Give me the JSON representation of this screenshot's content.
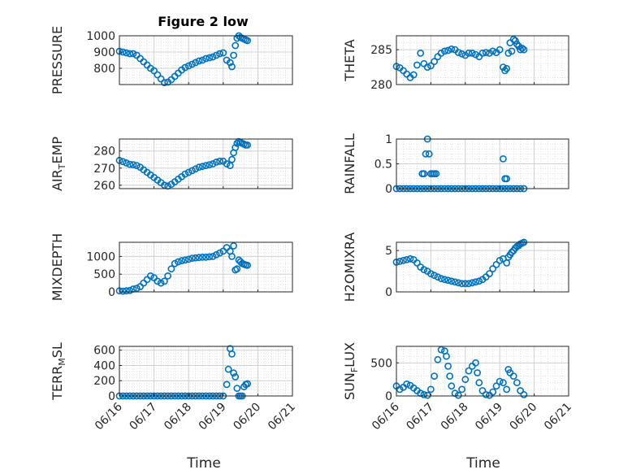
{
  "figure": {
    "title": "Figure 2 low",
    "xlabel": "Time",
    "x_ticks": [
      "06/16",
      "06/17",
      "06/18",
      "06/19",
      "06/20",
      "06/21"
    ],
    "marker_color": "#0072BD",
    "grid": true,
    "minor_grid": true
  },
  "chart_data": [
    {
      "type": "scatter",
      "marker": "circle",
      "ylabel": "PRESSURE",
      "xlim": [
        0,
        5
      ],
      "ylim": [
        700,
        1000
      ],
      "yticks": [
        800,
        900,
        1000
      ],
      "x": [
        0.0,
        0.1,
        0.2,
        0.3,
        0.4,
        0.5,
        0.6,
        0.7,
        0.8,
        0.9,
        1.0,
        1.1,
        1.2,
        1.3,
        1.4,
        1.5,
        1.6,
        1.7,
        1.8,
        1.9,
        2.0,
        2.1,
        2.2,
        2.3,
        2.4,
        2.5,
        2.6,
        2.7,
        2.8,
        2.9,
        3.0,
        3.1,
        3.2,
        3.25,
        3.3,
        3.35,
        3.4,
        3.45,
        3.5,
        3.55,
        3.6,
        3.65,
        3.7
      ],
      "y": [
        905,
        900,
        895,
        890,
        890,
        880,
        860,
        840,
        820,
        800,
        785,
        760,
        735,
        712,
        715,
        730,
        750,
        770,
        790,
        805,
        815,
        825,
        835,
        845,
        850,
        860,
        865,
        870,
        880,
        890,
        895,
        850,
        835,
        810,
        880,
        940,
        985,
        1000,
        990,
        985,
        980,
        975,
        970
      ]
    },
    {
      "type": "scatter",
      "marker": "circle",
      "ylabel": "THETA",
      "xlim": [
        0,
        5
      ],
      "ylim": [
        280,
        287
      ],
      "yticks": [
        280,
        285
      ],
      "x": [
        0.0,
        0.1,
        0.2,
        0.3,
        0.4,
        0.5,
        0.6,
        0.7,
        0.8,
        0.9,
        1.0,
        1.1,
        1.2,
        1.3,
        1.4,
        1.5,
        1.6,
        1.7,
        1.8,
        1.9,
        2.0,
        2.1,
        2.2,
        2.3,
        2.4,
        2.5,
        2.6,
        2.7,
        2.8,
        2.9,
        3.0,
        3.1,
        3.15,
        3.2,
        3.25,
        3.3,
        3.35,
        3.4,
        3.45,
        3.5,
        3.55,
        3.6,
        3.65,
        3.7
      ],
      "y": [
        282.6,
        282.4,
        282.0,
        281.5,
        281.0,
        281.4,
        282.8,
        284.5,
        283.0,
        282.5,
        282.7,
        283.3,
        284.0,
        284.5,
        284.8,
        284.9,
        285.1,
        285.0,
        284.6,
        284.4,
        284.2,
        284.5,
        284.5,
        284.3,
        284.0,
        284.5,
        284.6,
        284.5,
        284.8,
        284.6,
        285.0,
        282.5,
        282.0,
        282.3,
        284.5,
        286.0,
        284.8,
        286.5,
        286.3,
        285.8,
        285.5,
        285.0,
        285.2,
        285.0
      ]
    },
    {
      "type": "scatter",
      "marker": "circle",
      "ylabel": "AIR_TEMP",
      "xlim": [
        0,
        5
      ],
      "ylim": [
        258,
        287
      ],
      "yticks": [
        260,
        270,
        280
      ],
      "x": [
        0.0,
        0.1,
        0.2,
        0.3,
        0.4,
        0.5,
        0.6,
        0.7,
        0.8,
        0.9,
        1.0,
        1.1,
        1.2,
        1.3,
        1.4,
        1.5,
        1.6,
        1.7,
        1.8,
        1.9,
        2.0,
        2.1,
        2.2,
        2.3,
        2.4,
        2.5,
        2.6,
        2.7,
        2.8,
        2.9,
        3.0,
        3.1,
        3.2,
        3.25,
        3.3,
        3.35,
        3.4,
        3.45,
        3.5,
        3.55,
        3.6,
        3.65,
        3.7
      ],
      "y": [
        274.5,
        273.8,
        273.0,
        272.2,
        272.0,
        271.5,
        270.5,
        269.0,
        267.5,
        266.0,
        264.5,
        263.0,
        261.5,
        260.0,
        259.5,
        260.5,
        262.0,
        263.5,
        265.0,
        266.5,
        267.5,
        268.5,
        269.5,
        270.5,
        271.0,
        271.5,
        272.0,
        272.5,
        273.5,
        274.0,
        274.0,
        272.5,
        271.5,
        275.0,
        279.0,
        282.0,
        284.5,
        285.5,
        285.0,
        284.5,
        284.0,
        283.5,
        283.5
      ]
    },
    {
      "type": "scatter",
      "marker": "circle",
      "ylabel": "RAINFALL",
      "xlim": [
        0,
        5
      ],
      "ylim": [
        0,
        1
      ],
      "yticks": [
        0,
        0.5,
        1
      ],
      "x": [
        0.0,
        0.1,
        0.2,
        0.3,
        0.4,
        0.5,
        0.6,
        0.7,
        0.8,
        0.9,
        1.0,
        1.1,
        1.2,
        1.3,
        1.4,
        1.5,
        1.6,
        1.7,
        1.8,
        1.9,
        2.0,
        2.1,
        2.2,
        2.3,
        2.4,
        2.5,
        2.6,
        2.7,
        2.8,
        2.9,
        3.0,
        3.1,
        3.2,
        3.3,
        3.4,
        3.5,
        3.6,
        3.7,
        0.75,
        0.8,
        0.85,
        0.9,
        0.95,
        1.0,
        1.05,
        1.1,
        1.15,
        3.1,
        3.15,
        3.2
      ],
      "y": [
        0,
        0,
        0,
        0,
        0,
        0,
        0,
        0,
        0,
        0,
        0,
        0,
        0,
        0,
        0,
        0,
        0,
        0,
        0,
        0,
        0,
        0,
        0,
        0,
        0,
        0,
        0,
        0,
        0,
        0,
        0,
        0,
        0,
        0,
        0,
        0,
        0,
        0,
        0.3,
        0.3,
        0.7,
        1.0,
        0.7,
        0.3,
        0.3,
        0.3,
        0.3,
        0.6,
        0.2,
        0.2
      ]
    },
    {
      "type": "scatter",
      "marker": "circle",
      "ylabel": "MIXDEPTH",
      "xlim": [
        0,
        5
      ],
      "ylim": [
        0,
        1400
      ],
      "yticks": [
        0,
        500,
        1000
      ],
      "x": [
        0.0,
        0.1,
        0.2,
        0.3,
        0.4,
        0.5,
        0.6,
        0.7,
        0.8,
        0.9,
        1.0,
        1.1,
        1.2,
        1.3,
        1.4,
        1.5,
        1.6,
        1.7,
        1.8,
        1.9,
        2.0,
        2.1,
        2.2,
        2.3,
        2.4,
        2.5,
        2.6,
        2.7,
        2.8,
        2.9,
        3.0,
        3.1,
        3.2,
        3.25,
        3.3,
        3.35,
        3.4,
        3.45,
        3.5,
        3.55,
        3.6,
        3.65,
        3.7
      ],
      "y": [
        30,
        20,
        30,
        40,
        80,
        100,
        150,
        250,
        350,
        450,
        400,
        300,
        250,
        300,
        450,
        650,
        800,
        850,
        880,
        900,
        920,
        950,
        960,
        970,
        980,
        980,
        990,
        1000,
        1050,
        1100,
        1150,
        1250,
        1150,
        1000,
        1300,
        620,
        650,
        900,
        850,
        800,
        780,
        760,
        750
      ]
    },
    {
      "type": "scatter",
      "marker": "circle",
      "ylabel": "H2OMIXRA",
      "xlim": [
        0,
        5
      ],
      "ylim": [
        0,
        6
      ],
      "yticks": [
        0,
        5
      ],
      "x": [
        0.0,
        0.1,
        0.2,
        0.3,
        0.4,
        0.5,
        0.6,
        0.7,
        0.8,
        0.9,
        1.0,
        1.1,
        1.2,
        1.3,
        1.4,
        1.5,
        1.6,
        1.7,
        1.8,
        1.9,
        2.0,
        2.1,
        2.2,
        2.3,
        2.4,
        2.5,
        2.6,
        2.7,
        2.8,
        2.9,
        3.0,
        3.1,
        3.2,
        3.25,
        3.3,
        3.35,
        3.4,
        3.45,
        3.5,
        3.55,
        3.6,
        3.65,
        3.7
      ],
      "y": [
        3.6,
        3.7,
        3.8,
        3.9,
        4.0,
        3.9,
        3.5,
        3.0,
        2.7,
        2.5,
        2.2,
        2.0,
        1.8,
        1.6,
        1.5,
        1.4,
        1.3,
        1.2,
        1.1,
        1.0,
        1.0,
        1.0,
        1.1,
        1.2,
        1.3,
        1.5,
        1.8,
        2.2,
        2.8,
        3.3,
        3.8,
        4.0,
        3.5,
        4.2,
        4.5,
        4.8,
        5.0,
        5.3,
        5.5,
        5.6,
        5.8,
        5.9,
        6.0
      ]
    },
    {
      "type": "scatter",
      "marker": "circle",
      "ylabel": "TERR_MSL",
      "xlim": [
        0,
        5
      ],
      "ylim": [
        0,
        650
      ],
      "yticks": [
        0,
        200,
        400,
        600
      ],
      "x": [
        0.0,
        0.1,
        0.2,
        0.3,
        0.4,
        0.5,
        0.6,
        0.7,
        0.8,
        0.9,
        1.0,
        1.1,
        1.2,
        1.3,
        1.4,
        1.5,
        1.6,
        1.7,
        1.8,
        1.9,
        2.0,
        2.1,
        2.2,
        2.3,
        2.4,
        2.5,
        2.6,
        2.7,
        2.8,
        2.9,
        3.0,
        3.1,
        3.15,
        3.2,
        3.25,
        3.3,
        3.35,
        3.4,
        3.45,
        3.5,
        3.55,
        3.6,
        3.65,
        3.7
      ],
      "y": [
        0,
        0,
        0,
        0,
        0,
        0,
        0,
        0,
        0,
        0,
        0,
        0,
        0,
        0,
        0,
        0,
        0,
        0,
        0,
        0,
        0,
        0,
        0,
        0,
        0,
        0,
        0,
        0,
        0,
        0,
        0,
        150,
        350,
        620,
        550,
        300,
        250,
        100,
        0,
        0,
        0,
        120,
        150,
        160
      ]
    },
    {
      "type": "scatter",
      "marker": "circle",
      "ylabel": "SUN_FLUX",
      "xlim": [
        0,
        5
      ],
      "ylim": [
        0,
        750
      ],
      "yticks": [
        0,
        500
      ],
      "x": [
        0.0,
        0.1,
        0.2,
        0.3,
        0.4,
        0.5,
        0.6,
        0.7,
        0.8,
        0.9,
        1.0,
        1.1,
        1.2,
        1.3,
        1.4,
        1.45,
        1.5,
        1.55,
        1.6,
        1.7,
        1.8,
        1.9,
        2.0,
        2.1,
        2.2,
        2.3,
        2.35,
        2.4,
        2.5,
        2.6,
        2.7,
        2.8,
        2.9,
        3.0,
        3.1,
        3.2,
        3.25,
        3.3,
        3.4,
        3.5,
        3.6,
        3.7
      ],
      "y": [
        150,
        100,
        130,
        180,
        160,
        120,
        80,
        40,
        20,
        10,
        100,
        300,
        550,
        700,
        680,
        600,
        450,
        300,
        150,
        40,
        10,
        100,
        250,
        380,
        450,
        500,
        350,
        200,
        80,
        20,
        10,
        60,
        150,
        220,
        200,
        100,
        400,
        350,
        300,
        200,
        80,
        20
      ]
    }
  ]
}
